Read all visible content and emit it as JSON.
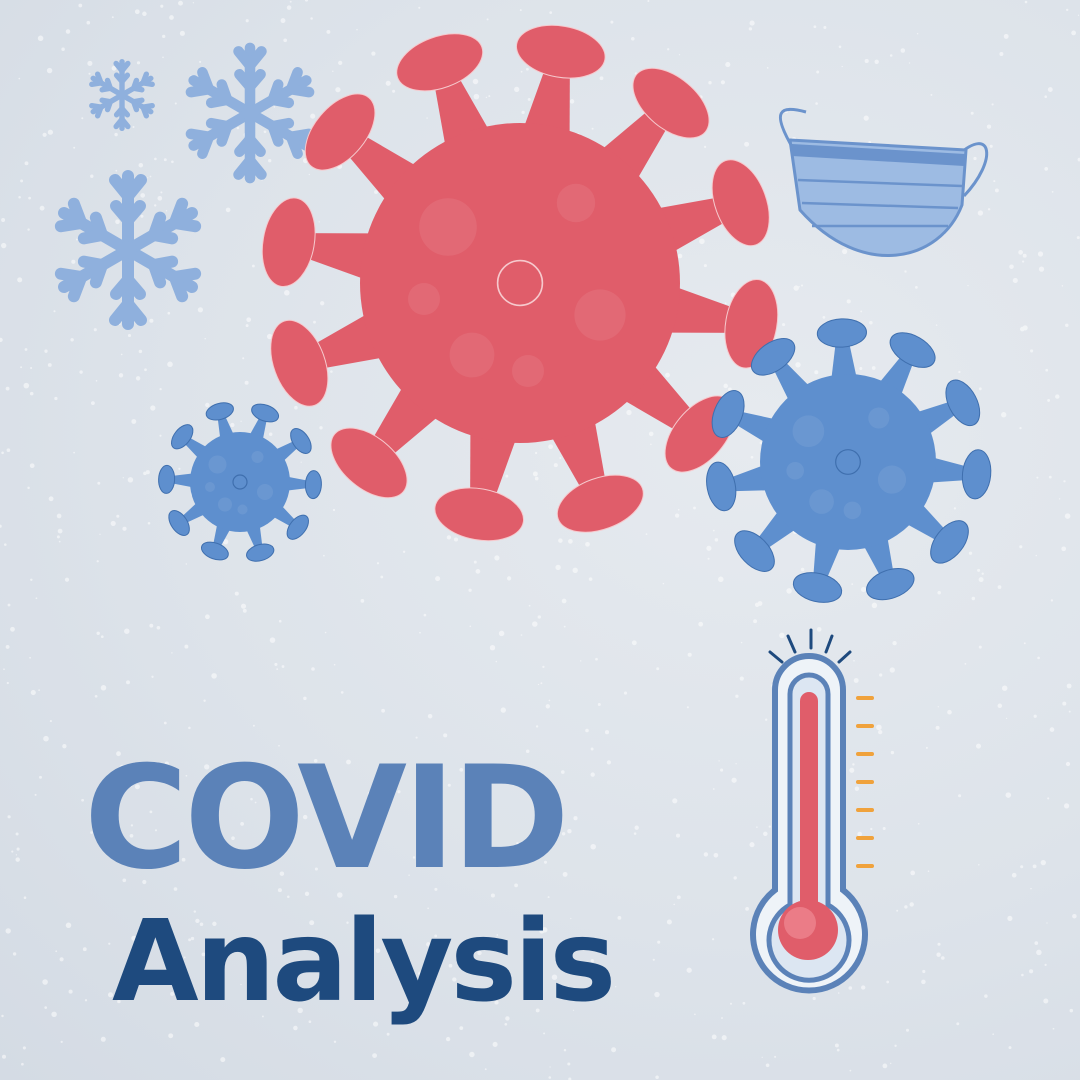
{
  "title": {
    "line1": "COVID",
    "line2": "Analysis"
  },
  "icons": [
    "snowflake-icon",
    "virus-icon",
    "face-mask-icon",
    "thermometer-icon"
  ],
  "colors": {
    "background": "#dde3ea",
    "snowflake": "#8fb0dd",
    "virus_red": "#e05d6a",
    "virus_blue": "#5e8fce",
    "mask": "#9dbbe3",
    "thermometer_outline": "#5b82b8",
    "thermometer_fill": "#e05d6a",
    "thermometer_ticks": "#f0a23c",
    "title_light": "#5b82b8",
    "title_dark": "#1e4a7e"
  }
}
